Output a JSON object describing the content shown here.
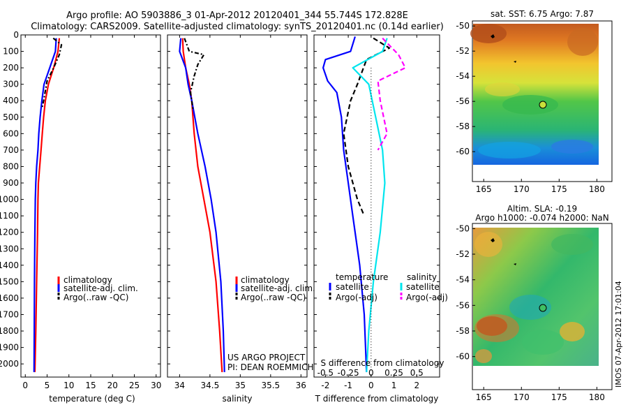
{
  "title": {
    "line1": "Argo profile: AO 5903886_3 01-Apr-2012 20120401_344 55.744S 172.828E",
    "line2": "Climatology: CARS2009. Satellite-adjusted climatology: synTS_20120401.nc (0.14d earlier)"
  },
  "colors": {
    "climatology": "#ff0000",
    "satellite": "#0000ff",
    "argo": "#000000",
    "salinity_sat": "#00e5ee",
    "salinity_argo": "#ff00ff"
  },
  "chart_data": [
    {
      "type": "line",
      "xlabel": "temperature (deg C)",
      "xlim": [
        -1,
        31
      ],
      "ylim": [
        2080,
        0
      ],
      "xticks": [
        "0",
        "5",
        "10",
        "15",
        "20",
        "25",
        "30"
      ],
      "xtick_values": [
        0,
        5,
        10,
        15,
        20,
        25,
        30
      ],
      "yticks": [
        "0",
        "100",
        "200",
        "300",
        "400",
        "500",
        "600",
        "700",
        "800",
        "900",
        "1000",
        "1100",
        "1200",
        "1300",
        "1400",
        "1500",
        "1600",
        "1700",
        "1800",
        "1900",
        "2000"
      ],
      "legend": [
        "climatology",
        "satellite-adj. clim.",
        "Argo(..raw -QC)"
      ],
      "series": [
        {
          "name": "climatology",
          "color": "#ff0000",
          "dash": "",
          "points": [
            [
              7.8,
              20
            ],
            [
              7.5,
              100
            ],
            [
              6.5,
              200
            ],
            [
              5.3,
              300
            ],
            [
              4.6,
              400
            ],
            [
              4.2,
              500
            ],
            [
              3.9,
              600
            ],
            [
              3.6,
              700
            ],
            [
              3.3,
              800
            ],
            [
              3.0,
              900
            ],
            [
              2.9,
              1000
            ],
            [
              2.8,
              1200
            ],
            [
              2.6,
              1500
            ],
            [
              2.4,
              1800
            ],
            [
              2.2,
              2050
            ]
          ]
        },
        {
          "name": "satellite-adj. clim.",
          "color": "#0000ff",
          "dash": "",
          "points": [
            [
              7.1,
              20
            ],
            [
              6.9,
              100
            ],
            [
              5.6,
              200
            ],
            [
              4.3,
              300
            ],
            [
              3.8,
              400
            ],
            [
              3.4,
              500
            ],
            [
              3.1,
              600
            ],
            [
              2.9,
              700
            ],
            [
              2.6,
              800
            ],
            [
              2.4,
              900
            ],
            [
              2.3,
              1000
            ],
            [
              2.2,
              1200
            ],
            [
              2.1,
              1500
            ],
            [
              2.05,
              1800
            ],
            [
              2.0,
              2050
            ]
          ]
        },
        {
          "name": "Argo(..raw -QC)",
          "color": "#000000",
          "dash": "6,3,2,3",
          "points": [
            [
              6.4,
              20
            ],
            [
              8.3,
              60
            ],
            [
              7.8,
              120
            ],
            [
              6.5,
              200
            ],
            [
              5.0,
              280
            ],
            [
              4.6,
              340
            ],
            [
              4.2,
              400
            ],
            [
              3.8,
              450
            ]
          ]
        }
      ]
    },
    {
      "type": "line",
      "xlabel": "salinity",
      "xlim": [
        33.8,
        36.1
      ],
      "ylim": [
        2080,
        0
      ],
      "xticks": [
        "34",
        "34.5",
        "35",
        "35.5",
        "36"
      ],
      "xtick_values": [
        34,
        34.5,
        35,
        35.5,
        36
      ],
      "legend": [
        "climatology",
        "satellite-adj. clim.",
        "Argo(..raw -QC)"
      ],
      "annotation": [
        "US ARGO PROJECT",
        "PI: DEAN ROEMMICH"
      ],
      "series": [
        {
          "name": "climatology",
          "color": "#ff0000",
          "dash": "",
          "points": [
            [
              34.05,
              20
            ],
            [
              34.06,
              100
            ],
            [
              34.1,
              200
            ],
            [
              34.16,
              300
            ],
            [
              34.2,
              400
            ],
            [
              34.24,
              600
            ],
            [
              34.3,
              800
            ],
            [
              34.4,
              1000
            ],
            [
              34.5,
              1200
            ],
            [
              34.6,
              1500
            ],
            [
              34.66,
              1800
            ],
            [
              34.7,
              2050
            ]
          ]
        },
        {
          "name": "satellite-adj. clim.",
          "color": "#0000ff",
          "dash": "",
          "points": [
            [
              34.02,
              20
            ],
            [
              34.0,
              100
            ],
            [
              34.1,
              200
            ],
            [
              34.14,
              300
            ],
            [
              34.2,
              400
            ],
            [
              34.3,
              600
            ],
            [
              34.42,
              800
            ],
            [
              34.52,
              1000
            ],
            [
              34.6,
              1200
            ],
            [
              34.68,
              1500
            ],
            [
              34.72,
              1800
            ],
            [
              34.74,
              2050
            ]
          ]
        },
        {
          "name": "Argo(..raw -QC)",
          "color": "#000000",
          "dash": "6,3,2,3",
          "points": [
            [
              34.08,
              20
            ],
            [
              34.16,
              100
            ],
            [
              34.4,
              120
            ],
            [
              34.3,
              180
            ],
            [
              34.24,
              250
            ],
            [
              34.18,
              350
            ],
            [
              34.22,
              450
            ]
          ]
        }
      ]
    },
    {
      "type": "line",
      "xlabel": "T difference from climatology",
      "xlabel_top": "S difference from climatology",
      "xlim": [
        -2.5,
        3
      ],
      "ylim": [
        2080,
        0
      ],
      "xticks": [
        "-2",
        "-1",
        "0",
        "1",
        "2"
      ],
      "xtick_values": [
        -2,
        -1,
        0,
        1,
        2
      ],
      "sticks": [
        "-0.5",
        "-0.25",
        "0",
        "0.25",
        "0.5"
      ],
      "stick_values": [
        -2,
        -1,
        0,
        1,
        2
      ],
      "legend_titles": [
        "temperature",
        "salinity"
      ],
      "legend": [
        "satellite",
        "Argo(-adj)",
        "satellite",
        "Argo(-adj)"
      ],
      "series": [
        {
          "name": "temperature satellite",
          "color": "#0000ff",
          "dash": "",
          "points": [
            [
              -0.7,
              10
            ],
            [
              -0.9,
              100
            ],
            [
              -2.0,
              150
            ],
            [
              -2.1,
              200
            ],
            [
              -1.9,
              280
            ],
            [
              -1.5,
              350
            ],
            [
              -1.3,
              500
            ],
            [
              -1.2,
              700
            ],
            [
              -1.0,
              900
            ],
            [
              -0.8,
              1100
            ],
            [
              -0.5,
              1400
            ],
            [
              -0.3,
              1700
            ],
            [
              -0.2,
              2050
            ]
          ]
        },
        {
          "name": "temperature Argo(-adj)",
          "color": "#000000",
          "dash": "7,4",
          "points": [
            [
              0.1,
              20
            ],
            [
              0.8,
              80
            ],
            [
              -0.2,
              150
            ],
            [
              -0.6,
              300
            ],
            [
              -0.9,
              400
            ],
            [
              -1.2,
              600
            ],
            [
              -1.0,
              800
            ],
            [
              -0.6,
              1000
            ],
            [
              -0.3,
              1100
            ]
          ]
        },
        {
          "name": "salinity satellite",
          "color": "#00e5ee",
          "dash": "",
          "points": [
            [
              0.7,
              20
            ],
            [
              0.5,
              100
            ],
            [
              -0.8,
              200
            ],
            [
              -0.1,
              300
            ],
            [
              0.2,
              500
            ],
            [
              0.5,
              700
            ],
            [
              0.6,
              900
            ],
            [
              0.4,
              1200
            ],
            [
              0.1,
              1500
            ],
            [
              -0.1,
              1800
            ],
            [
              -0.2,
              2050
            ]
          ]
        },
        {
          "name": "salinity Argo(-adj)",
          "color": "#ff00ff",
          "dash": "7,4",
          "points": [
            [
              0.5,
              20
            ],
            [
              1.2,
              120
            ],
            [
              1.5,
              200
            ],
            [
              0.3,
              280
            ],
            [
              0.4,
              400
            ],
            [
              0.7,
              600
            ],
            [
              0.3,
              700
            ]
          ]
        }
      ]
    }
  ],
  "maps": [
    {
      "label": "sat. SST: 6.75 Argo: 7.87",
      "xticks": [
        "165",
        "170",
        "175",
        "180"
      ],
      "yticks": [
        "-50",
        "-52",
        "-54",
        "-56",
        "-58",
        "-60"
      ]
    },
    {
      "label_line1": "Altim. SLA: -0.19",
      "label_line2": "Argo h1000: -0.074 h2000: NaN",
      "xticks": [
        "165",
        "170",
        "175",
        "180"
      ],
      "yticks": [
        "-50",
        "-52",
        "-54",
        "-56",
        "-58",
        "-60"
      ]
    }
  ],
  "footer": "IMOS 07-Apr-2012 17:01:04"
}
